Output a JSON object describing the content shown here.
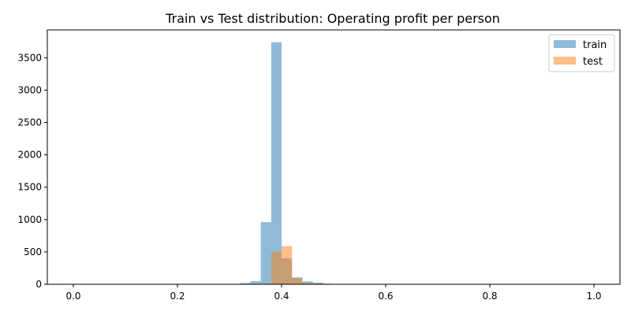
{
  "chart_data": {
    "type": "bar",
    "title": "Train vs Test distribution:  Operating profit per person",
    "xlabel": "",
    "ylabel": "",
    "xlim": [
      -0.05,
      1.05
    ],
    "ylim": [
      0,
      3930
    ],
    "x_ticks": [
      "0.0",
      "0.2",
      "0.4",
      "0.6",
      "0.8",
      "1.0"
    ],
    "y_ticks": [
      "0",
      "500",
      "1000",
      "1500",
      "2000",
      "2500",
      "3000",
      "3500"
    ],
    "grid": false,
    "legend_position": "top-right",
    "series": [
      {
        "name": "train",
        "color": "#1f77b4",
        "alpha": 0.5,
        "bins": [
          {
            "x0": 0.32,
            "x1": 0.34,
            "value": 20
          },
          {
            "x0": 0.34,
            "x1": 0.36,
            "value": 50
          },
          {
            "x0": 0.36,
            "x1": 0.38,
            "value": 960
          },
          {
            "x0": 0.38,
            "x1": 0.4,
            "value": 3740
          },
          {
            "x0": 0.4,
            "x1": 0.42,
            "value": 400
          },
          {
            "x0": 0.42,
            "x1": 0.44,
            "value": 105
          },
          {
            "x0": 0.44,
            "x1": 0.46,
            "value": 45
          },
          {
            "x0": 0.46,
            "x1": 0.48,
            "value": 25
          },
          {
            "x0": 0.48,
            "x1": 0.5,
            "value": 10
          },
          {
            "x0": 0.5,
            "x1": 0.52,
            "value": 4
          }
        ]
      },
      {
        "name": "test",
        "color": "#ff7f0e",
        "alpha": 0.5,
        "bins": [
          {
            "x0": 0.36,
            "x1": 0.38,
            "value": 10
          },
          {
            "x0": 0.38,
            "x1": 0.4,
            "value": 500
          },
          {
            "x0": 0.4,
            "x1": 0.42,
            "value": 590
          },
          {
            "x0": 0.42,
            "x1": 0.44,
            "value": 95
          },
          {
            "x0": 0.44,
            "x1": 0.46,
            "value": 20
          },
          {
            "x0": 0.46,
            "x1": 0.48,
            "value": 8
          }
        ]
      }
    ]
  }
}
